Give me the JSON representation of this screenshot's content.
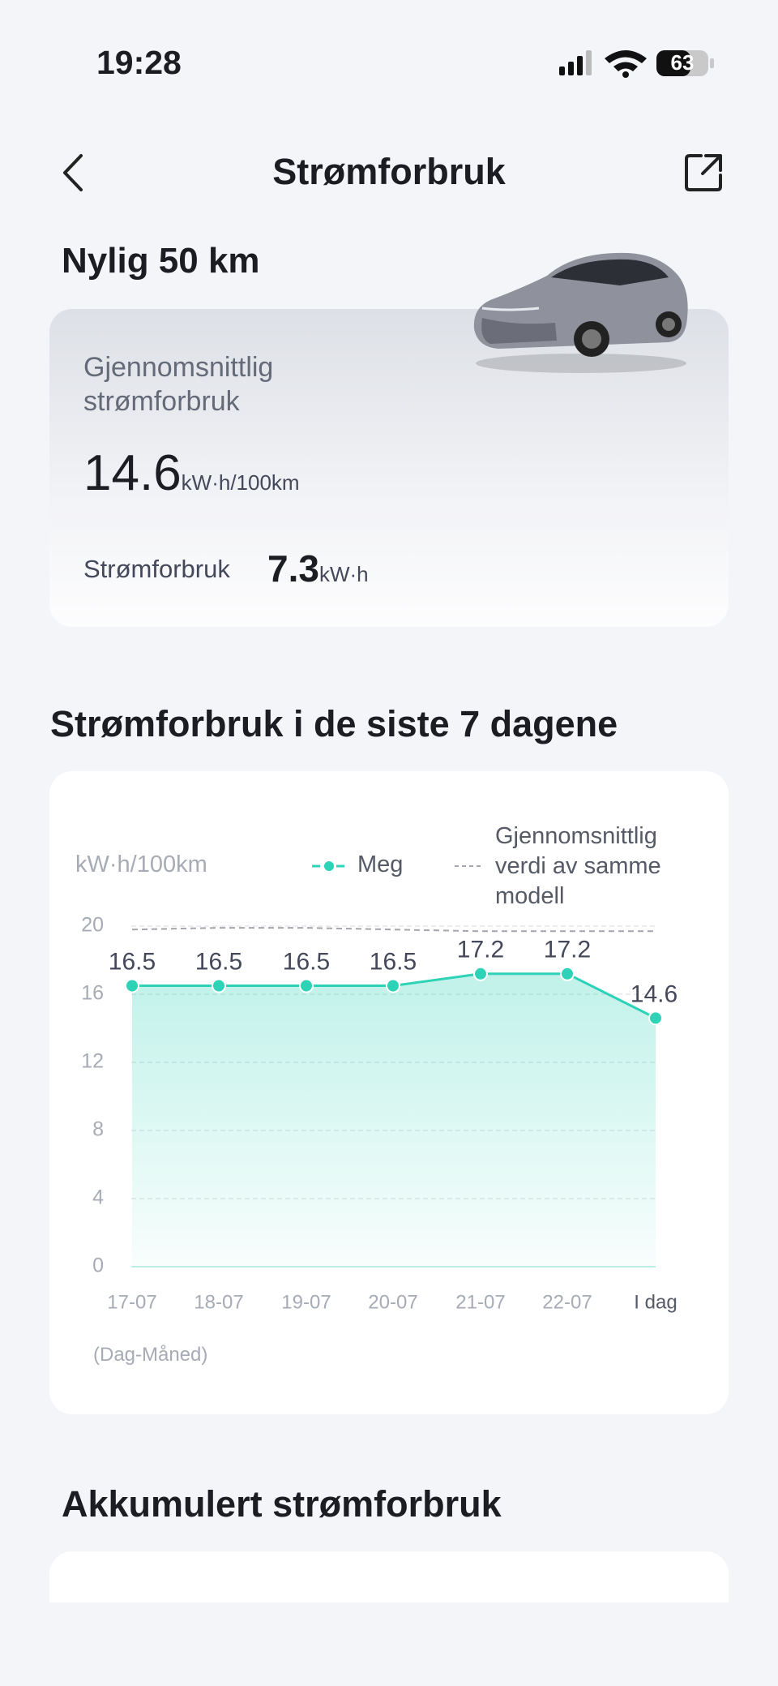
{
  "status_bar": {
    "time": "19:28",
    "battery": "63"
  },
  "header": {
    "title": "Strømforbruk"
  },
  "recent": {
    "title": "Nylig 50 km",
    "avg_label": "Gjennomsnittlig strømforbruk",
    "avg_value": "14.6",
    "avg_unit": "kW·h/100km",
    "consumption_label": "Strømforbruk",
    "consumption_value": "7.3",
    "consumption_unit": "kW·h"
  },
  "chart_section": {
    "title": "Strømforbruk i de siste 7 dagene"
  },
  "chart_data": {
    "type": "line",
    "y_label": "kW·h/100km",
    "x_label": "(Dag-Måned)",
    "categories": [
      "17-07",
      "18-07",
      "19-07",
      "20-07",
      "21-07",
      "22-07",
      "I dag"
    ],
    "series": [
      {
        "name": "Meg",
        "color": "#2ed3b7",
        "values": [
          16.5,
          16.5,
          16.5,
          16.5,
          17.2,
          17.2,
          14.6
        ]
      },
      {
        "name": "Gjennomsnittlig verdi av samme modell",
        "color": "#a3a6ad",
        "values": [
          19.8,
          19.9,
          19.9,
          19.8,
          19.7,
          19.7,
          19.7
        ]
      }
    ],
    "ylim": [
      0,
      20
    ],
    "yticks": [
      0,
      4,
      8,
      12,
      16,
      20
    ],
    "grid": true
  },
  "accumulated": {
    "title": "Akkumulert strømforbruk"
  }
}
